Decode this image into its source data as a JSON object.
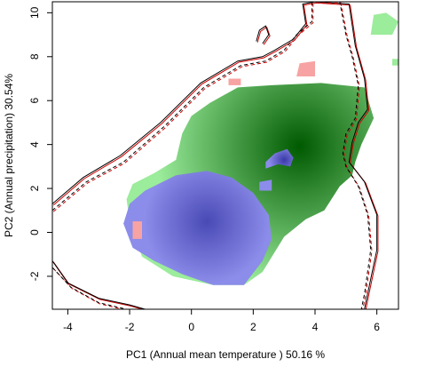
{
  "chart_data": {
    "type": "heatmap",
    "title": "",
    "xlabel": "PC1 (Annual mean temperature ) 50.16 %",
    "ylabel": "PC2 (Annual precipitation) 30.54%",
    "xlim": [
      -4.5,
      6.7
    ],
    "ylim": [
      -3.5,
      10.5
    ],
    "x_ticks": [
      -4,
      -2,
      0,
      2,
      4,
      6
    ],
    "y_ticks": [
      -2,
      0,
      2,
      4,
      6,
      8,
      10
    ],
    "grid": false,
    "legend": "none",
    "colors": {
      "overlap_fill": "#9bec9b",
      "overlap_density_peak": "#005a00",
      "species_b_only": "#f7a3a3",
      "species_a_only": "#8c8cea",
      "species_a_density_peak": "#4a4ab6",
      "env_contour": "#000000",
      "env_contour_b": "#cc0000"
    },
    "layers": [
      {
        "name": "",
        "kind": "density-region",
        "color": "#9bec9b",
        "peak_color": "#005a00",
        "peak": [
          3.5,
          3.9
        ],
        "outline": [
          [
            -1.9,
            2.2
          ],
          [
            -1.2,
            2.7
          ],
          [
            -0.5,
            3.3
          ],
          [
            -0.3,
            4.5
          ],
          [
            0.0,
            5.3
          ],
          [
            0.6,
            5.9
          ],
          [
            1.5,
            6.6
          ],
          [
            2.6,
            6.7
          ],
          [
            4.2,
            6.8
          ],
          [
            5.6,
            6.6
          ],
          [
            5.9,
            5.2
          ],
          [
            5.5,
            4.0
          ],
          [
            5.3,
            3.2
          ],
          [
            5.2,
            2.6
          ],
          [
            4.8,
            2.1
          ],
          [
            4.3,
            1.0
          ],
          [
            3.7,
            0.6
          ],
          [
            3.0,
            -0.2
          ],
          [
            2.3,
            -1.8
          ],
          [
            1.7,
            -2.4
          ],
          [
            0.7,
            -2.4
          ],
          [
            -0.6,
            -2.0
          ],
          [
            -1.6,
            -1.1
          ],
          [
            -2.0,
            0.5
          ],
          [
            -2.1,
            1.5
          ]
        ]
      },
      {
        "name": "",
        "kind": "density-region",
        "color": "#8c8cea",
        "peak_color": "#4a4ab6",
        "peak": [
          0.5,
          0.5
        ],
        "outline": [
          [
            -2.0,
            1.3
          ],
          [
            -1.5,
            1.9
          ],
          [
            -0.5,
            2.6
          ],
          [
            0.5,
            2.8
          ],
          [
            1.3,
            2.5
          ],
          [
            2.0,
            1.8
          ],
          [
            2.5,
            0.8
          ],
          [
            2.6,
            -0.3
          ],
          [
            2.3,
            -1.3
          ],
          [
            1.7,
            -2.4
          ],
          [
            0.7,
            -2.4
          ],
          [
            -0.3,
            -1.9
          ],
          [
            -1.2,
            -1.3
          ],
          [
            -1.9,
            -0.7
          ],
          [
            -2.2,
            0.4
          ]
        ]
      },
      {
        "name": "",
        "kind": "density-region",
        "color": "#8c8cea",
        "peak_color": "#3a3aa8",
        "peak": [
          3.0,
          3.3
        ],
        "outline": [
          [
            2.4,
            3.2
          ],
          [
            2.7,
            3.6
          ],
          [
            3.1,
            3.8
          ],
          [
            3.3,
            3.4
          ],
          [
            3.2,
            3.0
          ],
          [
            2.8,
            3.1
          ],
          [
            2.4,
            2.9
          ]
        ]
      },
      {
        "name": "",
        "kind": "density-region",
        "color": "#8c8cea",
        "peak_color": "#8c8cea",
        "peak": [
          2.4,
          2.1
        ],
        "outline": [
          [
            2.2,
            2.3
          ],
          [
            2.6,
            2.4
          ],
          [
            2.6,
            1.9
          ],
          [
            2.2,
            1.9
          ]
        ]
      },
      {
        "name": "",
        "kind": "density-region",
        "color": "#f7a3a3",
        "peak_color": "#f7a3a3",
        "peak": [
          3.7,
          7.4
        ],
        "outline": [
          [
            3.4,
            7.1
          ],
          [
            3.5,
            7.7
          ],
          [
            4.0,
            7.8
          ],
          [
            4.0,
            7.1
          ]
        ]
      },
      {
        "name": "",
        "kind": "density-region",
        "color": "#f7a3a3",
        "peak_color": "#f7a3a3",
        "peak": [
          1.4,
          6.9
        ],
        "outline": [
          [
            1.2,
            6.7
          ],
          [
            1.2,
            7.0
          ],
          [
            1.6,
            7.0
          ],
          [
            1.6,
            6.7
          ]
        ]
      },
      {
        "name": "",
        "kind": "density-region",
        "color": "#f7a3a3",
        "peak_color": "#f7a3a3",
        "peak": [
          -1.8,
          0.1
        ],
        "outline": [
          [
            -1.9,
            -0.3
          ],
          [
            -1.9,
            0.5
          ],
          [
            -1.6,
            0.5
          ],
          [
            -1.6,
            -0.3
          ]
        ]
      },
      {
        "name": "",
        "kind": "density-region",
        "color": "#9bec9b",
        "peak_color": "#9bec9b",
        "peak": [
          6.2,
          9.4
        ],
        "outline": [
          [
            5.8,
            9.0
          ],
          [
            5.9,
            9.9
          ],
          [
            6.3,
            10.0
          ],
          [
            6.7,
            9.6
          ],
          [
            6.5,
            9.0
          ]
        ]
      },
      {
        "name": "",
        "kind": "density-region",
        "color": "#9bec9b",
        "peak_color": "#9bec9b",
        "peak": [
          6.65,
          7.8
        ],
        "outline": [
          [
            6.5,
            7.6
          ],
          [
            6.5,
            7.9
          ],
          [
            6.7,
            7.9
          ],
          [
            6.7,
            7.6
          ]
        ]
      }
    ],
    "contours": [
      {
        "name": "",
        "color": "#000000",
        "dash": "solid",
        "points": [
          [
            -4.5,
            1.3
          ],
          [
            -3.5,
            2.5
          ],
          [
            -2.3,
            3.5
          ],
          [
            -1.0,
            5.0
          ],
          [
            0.3,
            6.8
          ],
          [
            1.5,
            7.8
          ],
          [
            2.3,
            8.0
          ],
          [
            2.7,
            8.3
          ],
          [
            3.3,
            8.8
          ],
          [
            3.7,
            9.5
          ],
          [
            3.6,
            10.4
          ],
          [
            4.0,
            10.5
          ],
          [
            5.1,
            10.4
          ],
          [
            5.3,
            8.5
          ],
          [
            5.6,
            7.0
          ],
          [
            5.7,
            5.6
          ],
          [
            5.4,
            5.0
          ],
          [
            5.2,
            4.1
          ],
          [
            5.1,
            3.2
          ],
          [
            5.6,
            2.3
          ],
          [
            6.0,
            0.8
          ],
          [
            6.0,
            -0.8
          ],
          [
            5.7,
            -2.8
          ],
          [
            5.6,
            -3.5
          ]
        ]
      },
      {
        "name": "",
        "color": "#000000",
        "dash": "dashed",
        "points": [
          [
            -4.5,
            1.0
          ],
          [
            -3.4,
            2.3
          ],
          [
            -2.2,
            3.2
          ],
          [
            -0.9,
            4.8
          ],
          [
            0.4,
            6.6
          ],
          [
            1.6,
            7.6
          ],
          [
            2.4,
            7.8
          ],
          [
            3.0,
            8.3
          ],
          [
            3.4,
            9.0
          ],
          [
            3.9,
            9.6
          ],
          [
            3.9,
            10.5
          ],
          [
            4.8,
            10.5
          ],
          [
            5.0,
            9.0
          ],
          [
            5.2,
            8.0
          ],
          [
            5.4,
            6.7
          ],
          [
            5.3,
            5.2
          ],
          [
            5.0,
            4.5
          ],
          [
            4.9,
            3.6
          ],
          [
            5.0,
            3.0
          ],
          [
            5.4,
            2.1
          ],
          [
            5.7,
            0.8
          ],
          [
            5.8,
            -0.8
          ],
          [
            5.6,
            -2.8
          ],
          [
            5.5,
            -3.5
          ]
        ]
      },
      {
        "name": "",
        "color": "#000000",
        "dash": "solid",
        "points": [
          [
            -4.5,
            -1.3
          ],
          [
            -4.0,
            -2.3
          ],
          [
            -3.0,
            -3.0
          ],
          [
            -2.0,
            -3.3
          ],
          [
            -1.5,
            -3.5
          ]
        ]
      },
      {
        "name": "",
        "color": "#000000",
        "dash": "dashed",
        "points": [
          [
            -4.5,
            -1.6
          ],
          [
            -3.9,
            -2.5
          ],
          [
            -3.0,
            -3.2
          ],
          [
            -2.1,
            -3.5
          ]
        ]
      },
      {
        "name": "",
        "color": "#000000",
        "dash": "solid",
        "points": [
          [
            2.1,
            8.7
          ],
          [
            2.2,
            9.2
          ],
          [
            2.4,
            9.4
          ],
          [
            2.5,
            9.0
          ],
          [
            2.3,
            8.6
          ]
        ]
      }
    ]
  }
}
